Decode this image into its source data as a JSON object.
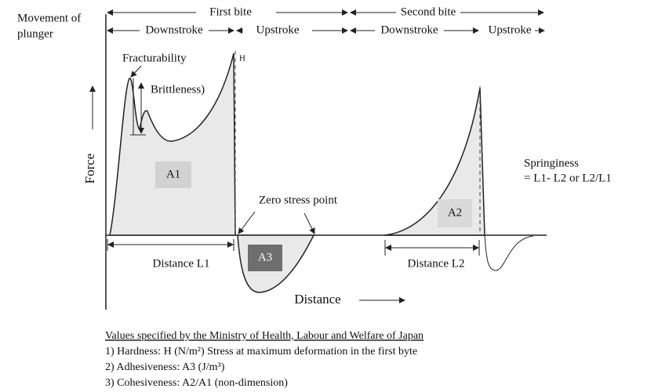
{
  "movement": [
    "Movement of",
    "plunger"
  ],
  "bites": [
    "First bite",
    "Second bite"
  ],
  "strokes": [
    "Downstroke",
    "Upstroke",
    "Downstroke",
    "Upstroke"
  ],
  "labels": {
    "fracturability": "Fracturability",
    "h": "H",
    "brittleness": "Brittleness)",
    "a1": "A1",
    "a2": "A2",
    "a3": "A3",
    "force": "Force",
    "zero_stress": "Zero stress point",
    "distance_l1": "Distance L1",
    "distance_l2": "Distance L2",
    "distance": "Distance"
  },
  "springiness": [
    "Springiness",
    "= L1- L2 or L2/L1"
  ],
  "notes": {
    "title": "Values specified by the Ministry of Health, Labour and Welfare of Japan",
    "items": [
      "1) Hardness: H (N/m²)   Stress at maximum deformation in the first byte",
      "2) Adhesiveness: A3 (J/m³)",
      "3) Cohesiveness: A2/A1 (non-dimension)"
    ]
  }
}
